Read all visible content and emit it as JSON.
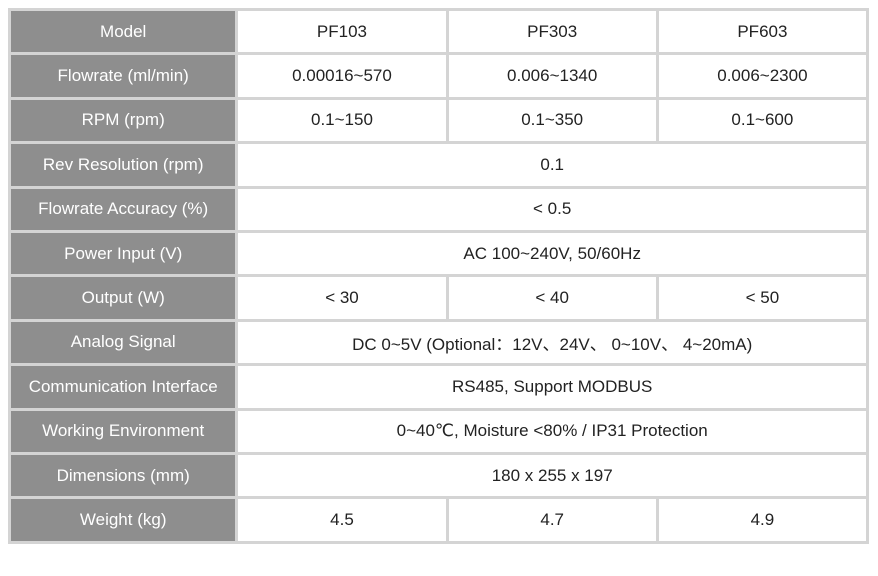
{
  "spec_table": {
    "rows": [
      {
        "label": "Model",
        "values": [
          "PF103",
          "PF303",
          "PF603"
        ]
      },
      {
        "label": "Flowrate (ml/min)",
        "values": [
          "0.00016~570",
          "0.006~1340",
          "0.006~2300"
        ]
      },
      {
        "label": "RPM (rpm)",
        "values": [
          "0.1~150",
          "0.1~350",
          "0.1~600"
        ]
      },
      {
        "label": "Rev Resolution (rpm)",
        "values": [
          "0.1"
        ]
      },
      {
        "label": "Flowrate Accuracy (%)",
        "values": [
          "< 0.5"
        ]
      },
      {
        "label": "Power Input (V)",
        "values": [
          "AC 100~240V, 50/60Hz"
        ]
      },
      {
        "label": "Output (W)",
        "values": [
          "< 30",
          "< 40",
          "< 50"
        ]
      },
      {
        "label": "Analog Signal",
        "values": [
          "DC 0~5V (Optional：12V、24V、 0~10V、 4~20mA)"
        ]
      },
      {
        "label": "Communication Interface",
        "values": [
          "RS485, Support MODBUS"
        ]
      },
      {
        "label": "Working Environment",
        "values": [
          "0~40℃, Moisture <80% / IP31 Protection"
        ]
      },
      {
        "label": "Dimensions (mm)",
        "values": [
          "180 x 255 x 197"
        ]
      },
      {
        "label": "Weight (kg)",
        "values": [
          "4.5",
          "4.7",
          "4.9"
        ]
      }
    ]
  }
}
